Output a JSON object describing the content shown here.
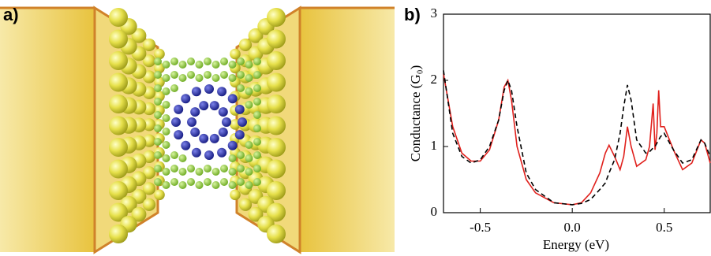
{
  "panels": {
    "a": "a)",
    "b": "b)"
  },
  "chart_data": {
    "type": "line",
    "x_label": "Energy (eV)",
    "y_label": "Conductance (G₀)",
    "x": [
      -0.7,
      -0.65,
      -0.6,
      -0.55,
      -0.5,
      -0.45,
      -0.4,
      -0.37,
      -0.35,
      -0.33,
      -0.3,
      -0.25,
      -0.2,
      -0.1,
      0,
      0.05,
      0.1,
      0.15,
      0.18,
      0.2,
      0.23,
      0.26,
      0.28,
      0.3,
      0.32,
      0.35,
      0.4,
      0.42,
      0.44,
      0.45,
      0.46,
      0.47,
      0.48,
      0.5,
      0.55,
      0.6,
      0.65,
      0.7,
      0.72,
      0.75
    ],
    "series": [
      {
        "color": "#e0201c",
        "dashed": false,
        "values": [
          2.1,
          1.3,
          0.9,
          0.78,
          0.78,
          0.95,
          1.4,
          1.9,
          2.0,
          1.7,
          1.0,
          0.5,
          0.3,
          0.15,
          0.12,
          0.15,
          0.3,
          0.6,
          0.9,
          1.02,
          0.85,
          0.65,
          0.85,
          1.3,
          1.0,
          0.7,
          0.8,
          1.0,
          1.65,
          0.95,
          1.2,
          1.85,
          1.3,
          1.3,
          0.95,
          0.65,
          0.75,
          1.1,
          1.05,
          0.75
        ]
      },
      {
        "color": "#000000",
        "dashed": true,
        "values": [
          2.15,
          1.2,
          0.85,
          0.75,
          0.8,
          1.0,
          1.4,
          1.85,
          2.0,
          1.85,
          1.3,
          0.6,
          0.35,
          0.15,
          0.12,
          0.14,
          0.2,
          0.35,
          0.45,
          0.6,
          0.8,
          1.2,
          1.6,
          1.93,
          1.7,
          1.1,
          0.9,
          0.92,
          0.98,
          1.0,
          1.05,
          1.1,
          1.15,
          1.2,
          0.95,
          0.75,
          0.8,
          1.1,
          1.05,
          0.85
        ]
      }
    ],
    "xlim": [
      -0.7,
      0.75
    ],
    "ylim": [
      0,
      3
    ],
    "xticks": [
      -0.5,
      {
        "value": 0,
        "label": "0.0"
      },
      0.5
    ],
    "yticks": [
      0,
      1,
      2,
      3
    ]
  }
}
